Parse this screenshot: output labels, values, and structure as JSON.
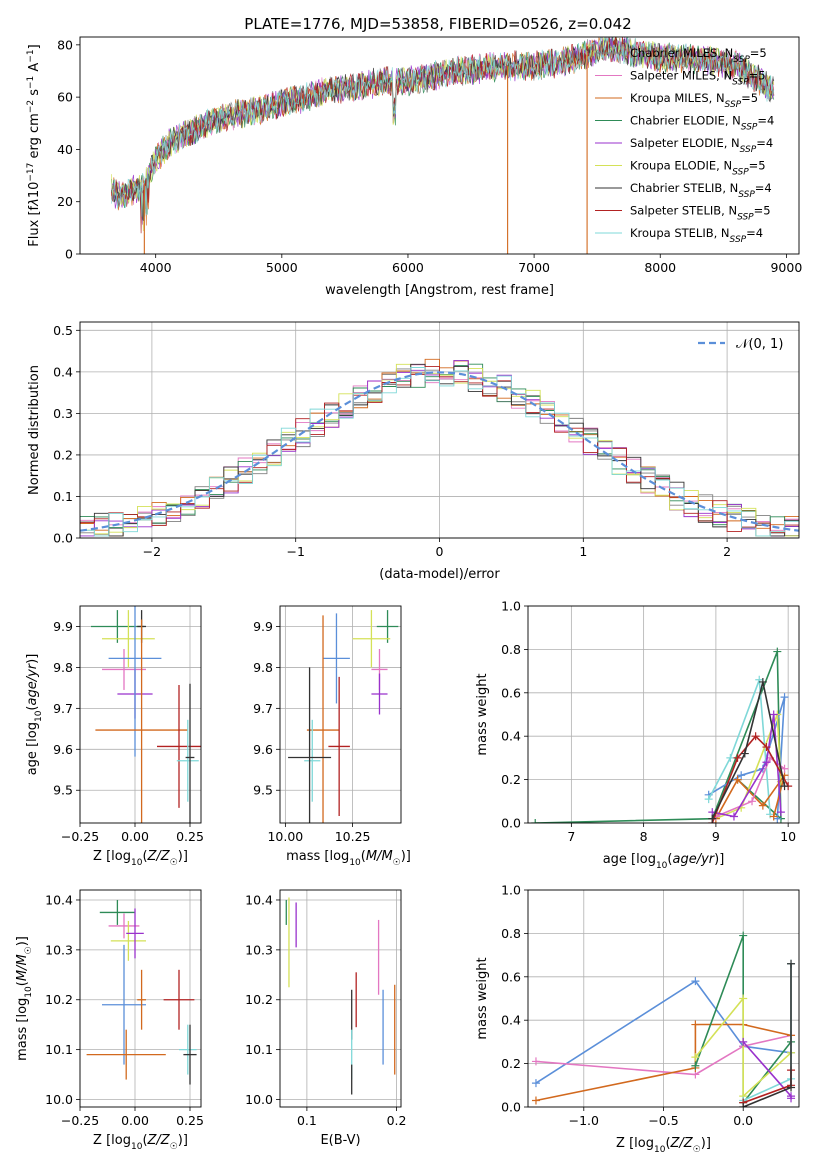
{
  "page": {
    "title": "PLATE=1776, MJD=53858, FIBERID=0526, z=0.042"
  },
  "legend_labels": {
    "chabrier_miles": "Chabrier MILES, N",
    "salpeter_miles": "Salpeter MILES, N",
    "kroupa_miles": "Kroupa MILES, N",
    "chabrier_elodie": "Chabrier ELODIE, N",
    "salpeter_elodie": "Salpeter ELODIE, N",
    "kroupa_elodie": "Kroupa ELODIE, N",
    "chabrier_stelib": "Chabrier STELIB, N",
    "salpeter_stelib": "Salpeter STELIB, N",
    "kroupa_stelib": "Kroupa STELIB, N",
    "ssp_sub": "SSP",
    "normal_label": "𝒩(0, 1)"
  },
  "chart_data": [
    {
      "id": "spectrum",
      "type": "line",
      "xlabel": "wavelength [Angstrom, rest frame]",
      "ylabel": "Flux [f",
      "ylabel_lambda": "λ",
      "ylabel_rest": "10",
      "ylabel_exp": "−17",
      "ylabel_units": " erg cm",
      "ylabel_exp2": "−2",
      "ylabel_units2": " s",
      "ylabel_exp3": "−1",
      "ylabel_units3": " A",
      "ylabel_exp4": "−1",
      "ylabel_end": "]",
      "xlim": [
        3400,
        9100
      ],
      "ylim": [
        0,
        83
      ],
      "xticks": [
        4000,
        5000,
        6000,
        7000,
        8000,
        9000
      ],
      "yticks": [
        0,
        20,
        40,
        60,
        80
      ],
      "legend_position": "top-right",
      "grid": false,
      "series": [
        {
          "name": "Chabrier MILES",
          "nssp": "=5",
          "color": "#808080"
        },
        {
          "name": "Salpeter MILES",
          "nssp": "=5",
          "color": "#e377c2"
        },
        {
          "name": "Kroupa MILES",
          "nssp": "=5",
          "color": "#d2691e"
        },
        {
          "name": "Chabrier ELODIE",
          "nssp": "=4",
          "color": "#2e8b57"
        },
        {
          "name": "Salpeter ELODIE",
          "nssp": "=4",
          "color": "#9932cc"
        },
        {
          "name": "Kroupa ELODIE",
          "nssp": "=5",
          "color": "#d4e157"
        },
        {
          "name": "Chabrier STELIB",
          "nssp": "=4",
          "color": "#333333"
        },
        {
          "name": "Salpeter STELIB",
          "nssp": "=5",
          "color": "#b22222"
        },
        {
          "name": "Kroupa STELIB",
          "nssp": "=4",
          "color": "#7fd8d8"
        }
      ],
      "continuum": {
        "x": [
          3650,
          3700,
          3800,
          3900,
          4000,
          4100,
          4200,
          4300,
          4400,
          4600,
          4800,
          5000,
          5200,
          5400,
          5600,
          5800,
          6000,
          6200,
          6400,
          6600,
          6800,
          7000,
          7200,
          7400,
          7600,
          7800,
          8000,
          8200,
          8400,
          8600,
          8800,
          8900
        ],
        "y": [
          25,
          22,
          24,
          26,
          36,
          42,
          45,
          47,
          50,
          53,
          55,
          58,
          60,
          63,
          64,
          66,
          66,
          68,
          70,
          71,
          72,
          72,
          73,
          76,
          79,
          77,
          75,
          75,
          74,
          72,
          66,
          62
        ]
      },
      "spikes": [
        {
          "x": 3910,
          "y": 0,
          "color": "#d2691e"
        },
        {
          "x": 6790,
          "y": 0,
          "color": "#d2691e"
        },
        {
          "x": 7420,
          "y": 0,
          "color": "#d2691e"
        }
      ]
    },
    {
      "id": "residuals",
      "type": "line",
      "xlabel": "(data-model)/error",
      "ylabel": "Normed distribution",
      "xlim": [
        -2.5,
        2.5
      ],
      "ylim": [
        0,
        0.52
      ],
      "xticks": [
        -2,
        -1,
        0,
        1,
        2
      ],
      "yticks": [
        0.0,
        0.1,
        0.2,
        0.3,
        0.4,
        0.5
      ],
      "grid": true,
      "legend_position": "top-right",
      "normal": {
        "name": "𝒩(0, 1)",
        "color": "#5b8fd9",
        "mu": 0,
        "sigma": 1
      }
    },
    {
      "id": "z_age",
      "type": "scatter",
      "xlabel": "Z [log",
      "xlabel_sub": "10",
      "xlabel_rest": "(Z/Z",
      "xlabel_sun": "☉",
      "xlabel_end": ")]",
      "ylabel": "age  [log",
      "ylabel_sub": "10",
      "ylabel_rest": "(age/yr)]",
      "xlim": [
        -0.25,
        0.3
      ],
      "ylim": [
        9.42,
        9.95
      ],
      "xticks": [
        -0.25,
        0.0,
        0.25
      ],
      "xtick_labels": [
        "−0.25",
        "0.00",
        "0.25"
      ],
      "yticks": [
        9.5,
        9.6,
        9.7,
        9.8,
        9.9
      ],
      "grid": true,
      "points": [
        {
          "x": -0.08,
          "xerr": 0.12,
          "y": 9.9,
          "yerr": 0.04,
          "color": "#2e8b57"
        },
        {
          "x": -0.03,
          "xerr": 0.12,
          "y": 9.87,
          "yerr": 0.07,
          "color": "#d4e157"
        },
        {
          "x": -0.05,
          "xerr": 0.1,
          "y": 9.795,
          "yerr": 0.05,
          "color": "#e377c2"
        },
        {
          "x": 0.03,
          "xerr": 0.02,
          "y": 9.9,
          "yerr": 0.04,
          "color": "#333333"
        },
        {
          "x": 0.0,
          "xerr": 0.08,
          "y": 9.735,
          "yerr": 0.06,
          "color": "#9932cc"
        },
        {
          "x": 0.0,
          "xerr": 0.12,
          "y": 9.822,
          "yerr": 0.24,
          "color": "#5b8fd9"
        },
        {
          "x": 0.03,
          "xerr": 0.21,
          "y": 9.647,
          "yerr": 0.27,
          "color": "#d2691e"
        },
        {
          "x": 0.2,
          "xerr": 0.1,
          "y": 9.607,
          "yerr": 0.15,
          "color": "#b22222"
        },
        {
          "x": 0.24,
          "xerr": 0.05,
          "y": 9.572,
          "yerr": 0.1,
          "color": "#7fd8d8"
        },
        {
          "x": 0.25,
          "xerr": 0.02,
          "y": 9.58,
          "yerr": 0.18,
          "color": "#333333"
        }
      ]
    },
    {
      "id": "mass_age",
      "type": "scatter",
      "xlabel": "mass [log",
      "xlabel_sub": "10",
      "xlabel_rest": "(M/M",
      "xlabel_sun": "☉",
      "xlabel_end": ")]",
      "xlim": [
        9.98,
        10.43
      ],
      "ylim": [
        9.42,
        9.95
      ],
      "xticks": [
        10.0,
        10.25
      ],
      "xtick_labels": [
        "10.00",
        "10.25"
      ],
      "yticks": [
        9.5,
        9.6,
        9.7,
        9.8,
        9.9
      ],
      "grid": true,
      "points": [
        {
          "x": 10.38,
          "xerr": 0.04,
          "y": 9.9,
          "yerr": 0.04,
          "color": "#2e8b57"
        },
        {
          "x": 10.32,
          "xerr": 0.07,
          "y": 9.87,
          "yerr": 0.07,
          "color": "#d4e157"
        },
        {
          "x": 10.35,
          "xerr": 0.03,
          "y": 9.795,
          "yerr": 0.05,
          "color": "#e377c2"
        },
        {
          "x": 10.35,
          "xerr": 0.03,
          "y": 9.735,
          "yerr": 0.05,
          "color": "#9932cc"
        },
        {
          "x": 10.19,
          "xerr": 0.05,
          "y": 9.822,
          "yerr": 0.11,
          "color": "#5b8fd9"
        },
        {
          "x": 10.14,
          "xerr": 0.06,
          "y": 9.647,
          "yerr": 0.28,
          "color": "#d2691e"
        },
        {
          "x": 10.2,
          "xerr": 0.04,
          "y": 9.607,
          "yerr": 0.17,
          "color": "#b22222"
        },
        {
          "x": 10.1,
          "xerr": 0.03,
          "y": 9.572,
          "yerr": 0.1,
          "color": "#7fd8d8"
        },
        {
          "x": 10.09,
          "xerr": 0.08,
          "y": 9.58,
          "yerr": 0.22,
          "color": "#333333"
        }
      ]
    },
    {
      "id": "age_weight",
      "type": "line",
      "xlabel": "age  [log",
      "xlabel_sub": "10",
      "xlabel_rest": "(age/yr)]",
      "ylabel": "mass weight",
      "xlim": [
        6.4,
        10.15
      ],
      "ylim": [
        0,
        1
      ],
      "xticks": [
        7,
        8,
        9,
        10
      ],
      "yticks": [
        0.0,
        0.2,
        0.4,
        0.6,
        0.8,
        1.0
      ],
      "grid": true,
      "series": [
        {
          "color": "#2e8b57",
          "x": [
            6.5,
            8.95,
            9.85,
            9.9,
            9.3
          ],
          "y": [
            0.0,
            0.02,
            0.79,
            0.02,
            0.2
          ]
        },
        {
          "color": "#5b8fd9",
          "x": [
            8.9,
            9.35,
            9.65,
            9.95,
            9.85
          ],
          "y": [
            0.13,
            0.22,
            0.25,
            0.58,
            0.02
          ]
        },
        {
          "color": "#7fd8d8",
          "x": [
            8.9,
            9.2,
            9.6,
            9.75
          ],
          "y": [
            0.11,
            0.3,
            0.66,
            0.04
          ]
        },
        {
          "color": "#d4e157",
          "x": [
            9.0,
            9.35,
            9.85,
            9.9
          ],
          "y": [
            0.02,
            0.07,
            0.5,
            0.19
          ]
        },
        {
          "color": "#d2691e",
          "x": [
            9.0,
            9.3,
            9.65,
            9.95,
            9.8
          ],
          "y": [
            0.02,
            0.2,
            0.08,
            0.22,
            0.03
          ]
        },
        {
          "color": "#e377c2",
          "x": [
            9.0,
            9.5,
            9.75,
            9.95
          ],
          "y": [
            0.03,
            0.1,
            0.3,
            0.25
          ]
        },
        {
          "color": "#9932cc",
          "x": [
            8.95,
            9.25,
            9.7,
            9.8,
            9.9
          ],
          "y": [
            0.05,
            0.03,
            0.28,
            0.5,
            0.05
          ]
        },
        {
          "color": "#b22222",
          "x": [
            8.95,
            9.3,
            9.55,
            9.7,
            10.0
          ],
          "y": [
            0.0,
            0.3,
            0.4,
            0.35,
            0.17
          ]
        },
        {
          "color": "#333333",
          "x": [
            8.95,
            9.4,
            9.65,
            9.95
          ],
          "y": [
            0.02,
            0.32,
            0.65,
            0.17
          ]
        }
      ]
    },
    {
      "id": "z_mass",
      "type": "scatter",
      "xlabel": "Z [log",
      "xlabel_sub": "10",
      "xlabel_rest": "(Z/Z",
      "xlabel_sun": "☉",
      "xlabel_end": ")]",
      "ylabel": "mass [log",
      "ylabel_sub": "10",
      "ylabel_rest": "(M/M",
      "ylabel_sun": "☉",
      "ylabel_end": ")]",
      "xlim": [
        -0.25,
        0.3
      ],
      "ylim": [
        9.985,
        10.42
      ],
      "xticks": [
        -0.25,
        0.0,
        0.25
      ],
      "xtick_labels": [
        "−0.25",
        "0.00",
        "0.25"
      ],
      "yticks": [
        10.0,
        10.1,
        10.2,
        10.3,
        10.4
      ],
      "grid": true,
      "points": [
        {
          "x": -0.08,
          "xerr": 0.08,
          "y": 10.375,
          "yerr": 0.025,
          "color": "#2e8b57"
        },
        {
          "x": -0.05,
          "xerr": 0.07,
          "y": 10.348,
          "yerr": 0.025,
          "color": "#e377c2"
        },
        {
          "x": -0.03,
          "xerr": 0.08,
          "y": 10.318,
          "yerr": 0.04,
          "color": "#d4e157"
        },
        {
          "x": 0.0,
          "xerr": 0.04,
          "y": 10.333,
          "yerr": 0.05,
          "color": "#9932cc"
        },
        {
          "x": -0.05,
          "xerr": 0.1,
          "y": 10.19,
          "yerr": 0.12,
          "color": "#5b8fd9"
        },
        {
          "x": -0.04,
          "xerr": 0.18,
          "y": 10.09,
          "yerr": 0.05,
          "color": "#d2691e"
        },
        {
          "x": 0.2,
          "xerr": 0.07,
          "y": 10.2,
          "yerr": 0.06,
          "color": "#b22222"
        },
        {
          "x": 0.24,
          "xerr": 0.04,
          "y": 10.1,
          "yerr": 0.05,
          "color": "#7fd8d8"
        },
        {
          "x": 0.25,
          "xerr": 0.03,
          "y": 10.09,
          "yerr": 0.06,
          "color": "#333333"
        },
        {
          "x": 0.03,
          "xerr": 0.02,
          "y": 10.2,
          "yerr": 0.06,
          "color": "#d2691e"
        }
      ]
    },
    {
      "id": "ebv_mass",
      "type": "scatter",
      "xlabel": "E(B-V)",
      "xlim": [
        0.07,
        0.205
      ],
      "ylim": [
        9.985,
        10.42
      ],
      "xticks": [
        0.1,
        0.2
      ],
      "xtick_labels": [
        "0.1",
        "0.2"
      ],
      "yticks": [
        10.0,
        10.1,
        10.2,
        10.3,
        10.4
      ],
      "grid": true,
      "points": [
        {
          "x": 0.08,
          "y": 10.315,
          "yerr": 0.09,
          "color": "#d4e157"
        },
        {
          "x": 0.088,
          "y": 10.35,
          "yerr": 0.045,
          "color": "#9932cc"
        },
        {
          "x": 0.077,
          "y": 10.375,
          "yerr": 0.025,
          "color": "#2e8b57"
        },
        {
          "x": 0.15,
          "y": 10.17,
          "yerr": 0.05,
          "color": "#333333"
        },
        {
          "x": 0.155,
          "y": 10.2,
          "yerr": 0.055,
          "color": "#b22222"
        },
        {
          "x": 0.15,
          "y": 10.09,
          "yerr": 0.05,
          "color": "#7fd8d8"
        },
        {
          "x": 0.15,
          "y": 10.04,
          "yerr": 0.03,
          "color": "#333333"
        },
        {
          "x": 0.18,
          "y": 10.285,
          "yerr": 0.075,
          "color": "#e377c2"
        },
        {
          "x": 0.185,
          "y": 10.145,
          "yerr": 0.075,
          "color": "#5b8fd9"
        },
        {
          "x": 0.198,
          "y": 10.14,
          "yerr": 0.09,
          "color": "#d2691e"
        }
      ]
    },
    {
      "id": "z_weight",
      "type": "line",
      "xlabel": "Z [log",
      "xlabel_sub": "10",
      "xlabel_rest": "(Z/Z",
      "xlabel_sun": "☉",
      "xlabel_end": ")]",
      "ylabel": "mass weight",
      "xlim": [
        -1.35,
        0.35
      ],
      "ylim": [
        0,
        1
      ],
      "xticks": [
        -1.0,
        -0.5,
        0.0
      ],
      "xtick_labels": [
        "−1.0",
        "−0.5",
        "0.0"
      ],
      "yticks": [
        0.0,
        0.2,
        0.4,
        0.6,
        0.8,
        1.0
      ],
      "grid": true,
      "series": [
        {
          "color": "#5b8fd9",
          "x": [
            -1.3,
            -0.3,
            0.0,
            0.3
          ],
          "y": [
            0.11,
            0.58,
            0.28,
            0.25
          ]
        },
        {
          "color": "#e377c2",
          "x": [
            -1.3,
            -0.3,
            0.0,
            0.3
          ],
          "y": [
            0.21,
            0.15,
            0.28,
            0.33
          ]
        },
        {
          "color": "#d2691e",
          "x": [
            -1.3,
            -0.3,
            -0.3,
            0.0,
            0.3
          ],
          "y": [
            0.03,
            0.18,
            0.38,
            0.38,
            0.33
          ]
        },
        {
          "color": "#2e8b57",
          "x": [
            -0.3,
            0.0,
            0.0,
            0.3
          ],
          "y": [
            0.19,
            0.79,
            0.02,
            0.3
          ]
        },
        {
          "color": "#d4e157",
          "x": [
            -0.3,
            0.0,
            0.0,
            0.3
          ],
          "y": [
            0.23,
            0.5,
            0.05,
            0.25
          ]
        },
        {
          "color": "#7fd8d8",
          "x": [
            0.0,
            0.3,
            0.3
          ],
          "y": [
            0.03,
            0.13,
            0.66
          ]
        },
        {
          "color": "#9932cc",
          "x": [
            0.0,
            0.3,
            0.3
          ],
          "y": [
            0.3,
            0.05,
            0.04
          ]
        },
        {
          "color": "#b22222",
          "x": [
            0.0,
            0.3,
            0.3
          ],
          "y": [
            0.02,
            0.1,
            0.17
          ]
        },
        {
          "color": "#333333",
          "x": [
            0.0,
            0.3,
            0.3
          ],
          "y": [
            0.0,
            0.09,
            0.66
          ]
        }
      ]
    }
  ]
}
